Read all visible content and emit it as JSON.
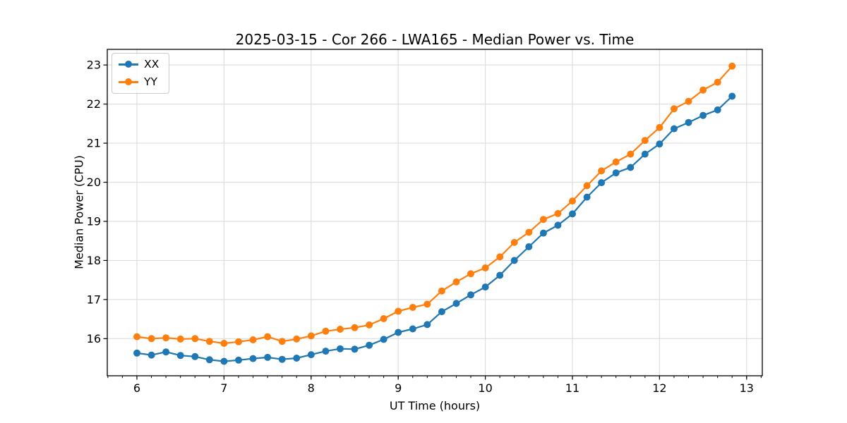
{
  "chart_data": {
    "type": "line",
    "title": "2025-03-15 - Cor 266 - LWA165 - Median Power vs. Time",
    "xlabel": "UT Time (hours)",
    "ylabel": "Median Power (CPU)",
    "xlim": [
      5.66,
      13.18
    ],
    "ylim": [
      15.05,
      23.4
    ],
    "xticks": [
      6,
      7,
      8,
      9,
      10,
      11,
      12,
      13
    ],
    "yticks": [
      16,
      17,
      18,
      19,
      20,
      21,
      22,
      23
    ],
    "x_minor_step": 0.166667,
    "grid": true,
    "legend_position": "upper left",
    "x": [
      6.0,
      6.167,
      6.333,
      6.5,
      6.667,
      6.833,
      7.0,
      7.167,
      7.333,
      7.5,
      7.667,
      7.833,
      8.0,
      8.167,
      8.333,
      8.5,
      8.667,
      8.833,
      9.0,
      9.167,
      9.333,
      9.5,
      9.667,
      9.833,
      10.0,
      10.167,
      10.333,
      10.5,
      10.667,
      10.833,
      11.0,
      11.167,
      11.333,
      11.5,
      11.667,
      11.833,
      12.0,
      12.167,
      12.333,
      12.5,
      12.667,
      12.833
    ],
    "series": [
      {
        "name": "XX",
        "color": "#1f77b4",
        "values": [
          15.63,
          15.58,
          15.66,
          15.57,
          15.54,
          15.46,
          15.42,
          15.45,
          15.49,
          15.52,
          15.47,
          15.5,
          15.59,
          15.68,
          15.74,
          15.73,
          15.83,
          15.98,
          16.16,
          16.25,
          16.36,
          16.69,
          16.9,
          17.12,
          17.32,
          17.62,
          18.0,
          18.35,
          18.7,
          18.9,
          19.19,
          19.62,
          19.99,
          20.24,
          20.38,
          20.72,
          20.98,
          21.37,
          21.53,
          21.71,
          21.85,
          22.2
        ]
      },
      {
        "name": "YY",
        "color": "#ff7f0e",
        "values": [
          16.05,
          16.0,
          16.02,
          15.99,
          16.0,
          15.93,
          15.88,
          15.92,
          15.97,
          16.05,
          15.93,
          15.99,
          16.07,
          16.19,
          16.24,
          16.28,
          16.35,
          16.51,
          16.7,
          16.8,
          16.88,
          17.22,
          17.45,
          17.66,
          17.81,
          18.09,
          18.46,
          18.72,
          19.05,
          19.2,
          19.52,
          19.91,
          20.29,
          20.52,
          20.72,
          21.07,
          21.4,
          21.88,
          22.07,
          22.36,
          22.56,
          22.97
        ]
      }
    ]
  },
  "colors": {
    "background": "#ffffff",
    "grid": "#dedede",
    "spine": "#000000",
    "tick": "#000000",
    "text": "#000000",
    "legend_border": "#cccccc",
    "series_xx": "#1f77b4",
    "series_yy": "#ff7f0e"
  }
}
